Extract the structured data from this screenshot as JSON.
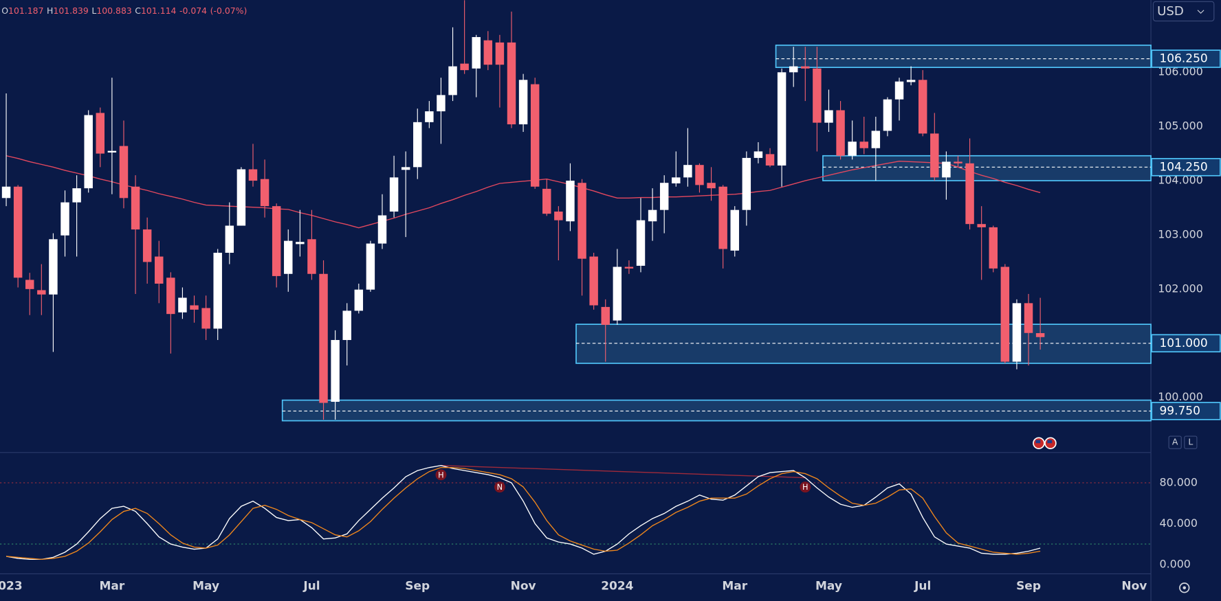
{
  "header": {
    "items": [
      {
        "label": "O",
        "value": 101.187
      },
      {
        "label": "H",
        "value": 101.839
      },
      {
        "label": "L",
        "value": 100.883
      },
      {
        "label": "C",
        "value": 101.114
      }
    ],
    "change": -0.074,
    "change_pct": "(-0.07%)"
  },
  "currency": "USD",
  "buttons": [
    "A",
    "L"
  ],
  "chart_data": [
    {
      "type": "candlestick",
      "categories": [
        "2023",
        null,
        null,
        null,
        null,
        null,
        null,
        null,
        null,
        "Mar",
        null,
        null,
        null,
        null,
        null,
        null,
        null,
        "May",
        null,
        null,
        null,
        null,
        null,
        null,
        null,
        null,
        "Jul",
        null,
        null,
        null,
        null,
        null,
        null,
        null,
        null,
        "Sep",
        null,
        null,
        null,
        null,
        null,
        null,
        null,
        null,
        "Nov",
        null,
        null,
        null,
        null,
        null,
        null,
        null,
        "2024",
        null,
        null,
        null,
        null,
        null,
        null,
        null,
        null,
        null,
        "Mar",
        null,
        null,
        null,
        null,
        null,
        null,
        null,
        "May",
        null,
        null,
        null,
        null,
        null,
        null,
        null,
        "Jul",
        null,
        null,
        null,
        null,
        null,
        null,
        null,
        null,
        "Sep",
        null,
        null,
        null,
        null,
        null,
        null,
        null,
        null,
        "Nov"
      ],
      "open": [
        103.68,
        103.89,
        102.17,
        101.98,
        101.9,
        102.99,
        103.6,
        103.86,
        105.25,
        104.52,
        104.64,
        103.89,
        103.1,
        102.6,
        102.21,
        101.57,
        101.7,
        101.65,
        101.27,
        102.67,
        103.17,
        104.21,
        104.03,
        103.53,
        102.28,
        102.83,
        102.92,
        102.28,
        99.92,
        101.06,
        101.6,
        101.99,
        102.84,
        103.43,
        104.2,
        104.25,
        105.08,
        105.28,
        105.58,
        106.16,
        106.07,
        106.59,
        106.55,
        106.55,
        105.04,
        105.78,
        103.85,
        103.43,
        103.25,
        103.96,
        102.6,
        101.67,
        101.42,
        102.41,
        102.43,
        103.25,
        103.46,
        103.95,
        104.06,
        104.29,
        103.96,
        103.89,
        102.71,
        103.46,
        104.42,
        104.49,
        104.28,
        106.0,
        106.11,
        106.07,
        105.07,
        105.3,
        104.46,
        104.72,
        104.6,
        104.92,
        105.5,
        105.82,
        105.86,
        104.87,
        104.06,
        104.35,
        104.32,
        103.2,
        103.14,
        102.41,
        100.66,
        101.74,
        101.187,
        null,
        null,
        null,
        null,
        null,
        null,
        null,
        null
      ],
      "high": [
        105.61,
        103.92,
        102.3,
        102.46,
        103.03,
        103.82,
        104.1,
        105.3,
        105.35,
        105.9,
        105.11,
        104.1,
        103.32,
        102.89,
        102.31,
        102.03,
        101.88,
        101.88,
        102.74,
        103.6,
        104.25,
        104.68,
        104.39,
        103.58,
        103.1,
        103.46,
        103.46,
        102.53,
        101.24,
        101.74,
        102.1,
        102.89,
        103.75,
        104.46,
        104.54,
        105.33,
        105.47,
        105.9,
        106.83,
        107.33,
        106.69,
        106.76,
        106.69,
        107.12,
        105.97,
        105.9,
        104.03,
        103.53,
        104.32,
        104.03,
        102.67,
        101.81,
        102.74,
        102.53,
        103.68,
        103.86,
        104.1,
        104.54,
        104.97,
        104.32,
        104.25,
        103.92,
        103.53,
        104.54,
        104.71,
        104.6,
        106.07,
        106.47,
        106.47,
        106.47,
        105.68,
        105.47,
        105.11,
        105.18,
        105.18,
        105.54,
        105.9,
        106.11,
        106.04,
        105.25,
        104.54,
        104.46,
        104.78,
        103.53,
        103.17,
        102.46,
        101.81,
        101.91,
        101.839,
        null,
        null,
        null,
        null,
        null,
        null,
        null,
        null
      ],
      "low": [
        103.53,
        102.03,
        101.52,
        101.52,
        100.84,
        102.6,
        102.6,
        103.78,
        104.25,
        103.75,
        103.49,
        101.91,
        102.1,
        101.74,
        100.81,
        101.45,
        101.38,
        101.06,
        101.06,
        102.46,
        103.17,
        103.89,
        103.32,
        102.03,
        101.95,
        102.6,
        102.17,
        99.59,
        99.59,
        100.59,
        101.55,
        101.95,
        102.74,
        103.32,
        102.96,
        104.03,
        104.97,
        104.68,
        105.47,
        105.97,
        105.54,
        106.04,
        105.35,
        104.97,
        104.9,
        103.85,
        103.35,
        102.53,
        103.07,
        101.88,
        101.62,
        100.66,
        101.34,
        102.28,
        102.31,
        102.89,
        103.03,
        103.89,
        103.89,
        103.78,
        103.63,
        102.38,
        102.6,
        103.17,
        104.32,
        104.25,
        103.89,
        105.73,
        105.47,
        104.54,
        104.9,
        104.39,
        104.39,
        104.49,
        104.0,
        104.82,
        105.11,
        105.76,
        104.82,
        104.0,
        103.65,
        104.25,
        103.1,
        102.17,
        102.31,
        100.63,
        100.52,
        100.59,
        100.883,
        null,
        null,
        null,
        null,
        null,
        null,
        null,
        null
      ],
      "close": [
        103.89,
        102.21,
        102.0,
        101.9,
        102.92,
        103.6,
        103.86,
        105.21,
        104.5,
        104.55,
        103.68,
        103.1,
        102.5,
        102.1,
        101.54,
        101.84,
        101.62,
        101.27,
        102.67,
        103.17,
        104.21,
        104.0,
        103.53,
        102.24,
        102.89,
        102.87,
        102.28,
        99.9,
        101.06,
        101.6,
        101.99,
        102.84,
        103.36,
        104.06,
        104.25,
        105.08,
        105.28,
        105.58,
        106.11,
        106.04,
        106.65,
        106.14,
        106.14,
        105.04,
        105.86,
        103.89,
        103.39,
        103.27,
        104.0,
        102.56,
        101.7,
        101.34,
        102.41,
        102.38,
        103.27,
        103.46,
        103.96,
        104.06,
        104.29,
        103.92,
        103.86,
        102.74,
        103.46,
        104.42,
        104.54,
        104.28,
        106.0,
        106.11,
        106.07,
        105.07,
        105.3,
        104.46,
        104.72,
        104.6,
        104.92,
        105.5,
        105.83,
        105.86,
        104.87,
        104.06,
        104.35,
        104.32,
        103.2,
        103.14,
        102.38,
        100.66,
        101.74,
        101.19,
        101.114,
        null,
        null,
        null,
        null,
        null,
        null,
        null,
        null
      ],
      "up_color": "#ffffff",
      "down_color": "#f25f6e",
      "overlay": {
        "color": "#e5485e",
        "values": [
          104.46,
          104.41,
          104.35,
          104.3,
          104.25,
          104.19,
          104.14,
          104.09,
          104.03,
          103.98,
          103.92,
          103.87,
          103.82,
          103.76,
          103.71,
          103.66,
          103.6,
          103.55,
          103.54,
          103.53,
          103.52,
          103.51,
          103.5,
          103.48,
          103.47,
          103.41,
          103.36,
          103.3,
          103.24,
          103.19,
          103.13,
          103.19,
          103.25,
          103.31,
          103.38,
          103.44,
          103.5,
          103.58,
          103.65,
          103.73,
          103.8,
          103.88,
          103.95,
          103.97,
          103.99,
          104.01,
          104.03,
          103.98,
          103.93,
          103.87,
          103.81,
          103.74,
          103.68,
          103.68,
          103.69,
          103.69,
          103.7,
          103.7,
          103.71,
          103.72,
          103.73,
          103.74,
          103.75,
          103.77,
          103.8,
          103.82,
          103.88,
          103.94,
          104.0,
          104.05,
          104.1,
          104.15,
          104.2,
          104.24,
          104.28,
          104.32,
          104.36,
          104.35,
          104.34,
          104.33,
          104.32,
          104.25,
          104.17,
          104.1,
          104.04,
          103.97,
          103.91,
          103.84,
          103.78,
          null,
          null,
          null,
          null,
          null,
          null,
          null,
          null
        ]
      },
      "zones": [
        {
          "from": 66,
          "top": 106.5,
          "bottom": 106.09,
          "level": {
            "value": 106.25,
            "label": "106.250"
          }
        },
        {
          "from": 70,
          "top": 104.46,
          "bottom": 104.0,
          "level": {
            "value": 104.25,
            "label": "104.250"
          }
        },
        {
          "from": 49,
          "top": 101.35,
          "bottom": 100.63,
          "level": {
            "value": 101,
            "label": "101.000"
          }
        },
        {
          "from": 24,
          "top": 99.95,
          "bottom": 99.57,
          "level": {
            "value": 99.75,
            "label": "99.750"
          }
        }
      ],
      "zone_color": "#4fc3f7",
      "ylim": [
        99.013,
        107.334
      ],
      "yticks": [
        {
          "value": 100,
          "label": "100.000"
        },
        {
          "value": 102,
          "label": "102.000"
        },
        {
          "value": 103,
          "label": "103.000"
        },
        {
          "value": 104,
          "label": "104.000"
        },
        {
          "value": 105,
          "label": "105.000"
        },
        {
          "value": 106,
          "label": "106.000"
        }
      ]
    },
    {
      "type": "line",
      "series": [
        {
          "color": "#ffffff",
          "values": [
            8,
            6,
            5,
            5,
            7,
            12,
            20,
            32,
            45,
            55,
            57,
            52,
            40,
            27,
            20,
            17,
            15,
            16,
            25,
            45,
            57,
            62,
            55,
            46,
            43,
            44,
            36,
            25,
            26,
            30,
            43,
            54,
            65,
            75,
            86,
            92,
            95,
            97,
            94,
            92,
            90,
            88,
            85,
            80,
            62,
            40,
            26,
            22,
            20,
            16,
            10,
            13,
            20,
            30,
            38,
            45,
            50,
            57,
            62,
            68,
            64,
            63,
            68,
            77,
            86,
            90,
            91,
            92,
            85,
            75,
            66,
            59,
            56,
            58,
            66,
            75,
            79,
            69,
            46,
            27,
            20,
            18,
            16,
            11,
            10,
            10,
            11,
            13,
            16,
            null,
            null,
            null,
            null,
            null,
            null,
            null,
            null
          ]
        },
        {
          "color": "#f0871c",
          "values": [
            8,
            7,
            6,
            5,
            6,
            8,
            13,
            21,
            32,
            44,
            52,
            55,
            50,
            40,
            29,
            21,
            17,
            16,
            19,
            29,
            42,
            55,
            58,
            54,
            48,
            44,
            41,
            35,
            29,
            27,
            33,
            42,
            54,
            65,
            75,
            84,
            91,
            95,
            95,
            94,
            92,
            90,
            88,
            84,
            76,
            61,
            43,
            29,
            23,
            19,
            15,
            13,
            14,
            21,
            29,
            38,
            44,
            51,
            56,
            62,
            65,
            65,
            65,
            69,
            77,
            84,
            89,
            91,
            89,
            84,
            75,
            67,
            60,
            58,
            60,
            66,
            73,
            74,
            65,
            47,
            31,
            21,
            18,
            15,
            12,
            11,
            10,
            11,
            13,
            null,
            null,
            null,
            null,
            null,
            null,
            null,
            null
          ]
        }
      ],
      "levels": [
        {
          "value": 80,
          "color": "#9a2d3e"
        },
        {
          "value": 20,
          "color": "#2f8a68"
        }
      ],
      "signals": [
        {
          "index": 37,
          "label": "H"
        },
        {
          "index": 42,
          "label": "N"
        },
        {
          "index": 68,
          "label": "H"
        }
      ],
      "signal_color": "#7a1420",
      "ylim": [
        -9.14,
        108.95
      ],
      "yticks": [
        {
          "value": 0,
          "label": "0.000"
        },
        {
          "value": 40,
          "label": "40.000"
        },
        {
          "value": 80,
          "label": "80.000"
        }
      ]
    }
  ]
}
